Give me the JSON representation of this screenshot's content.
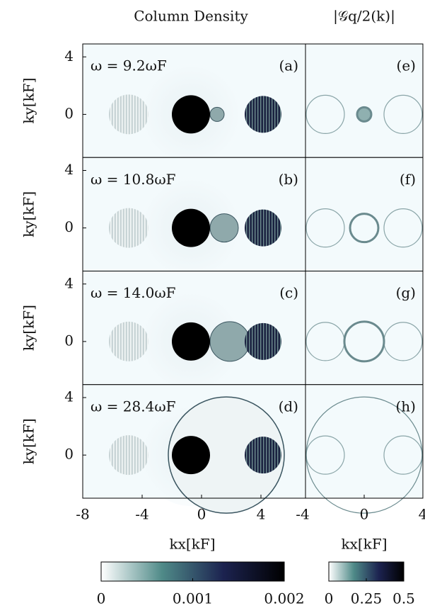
{
  "chart_data": {
    "type": "image-grid",
    "column_titles": [
      "Column Density",
      "|𝒢q/2(k)|"
    ],
    "y_axis_label": "ky[kF]",
    "x_axis_labels": [
      "kx[kF]",
      "kx[kF]"
    ],
    "rows": [
      {
        "label": "ω = 9.2ωF",
        "left_tag": "(a)",
        "right_tag": "(e)"
      },
      {
        "label": "ω = 10.8ωF",
        "left_tag": "(b)",
        "right_tag": "(f)"
      },
      {
        "label": "ω = 14.0ωF",
        "left_tag": "(c)",
        "right_tag": "(g)"
      },
      {
        "label": "ω = 28.4ωF",
        "left_tag": "(d)",
        "right_tag": "(h)"
      }
    ],
    "ylim": [
      -3,
      4.9
    ],
    "yticks": [
      0,
      4
    ],
    "left_xlim": [
      -8,
      7
    ],
    "left_xticks": [
      -8,
      -4,
      0,
      4
    ],
    "right_xlim": [
      -4,
      4
    ],
    "right_xticks": [
      -4,
      0,
      4
    ],
    "left_colorbar": {
      "lim": [
        0,
        0.002
      ],
      "ticks": [
        0,
        0.001,
        0.002
      ]
    },
    "right_colorbar": {
      "lim": [
        0,
        0.5
      ],
      "ticks": [
        0,
        0.25,
        0.5
      ]
    },
    "colormap": [
      "#ffffff",
      "#4f8a88",
      "#1c2350",
      "#000000"
    ]
  }
}
